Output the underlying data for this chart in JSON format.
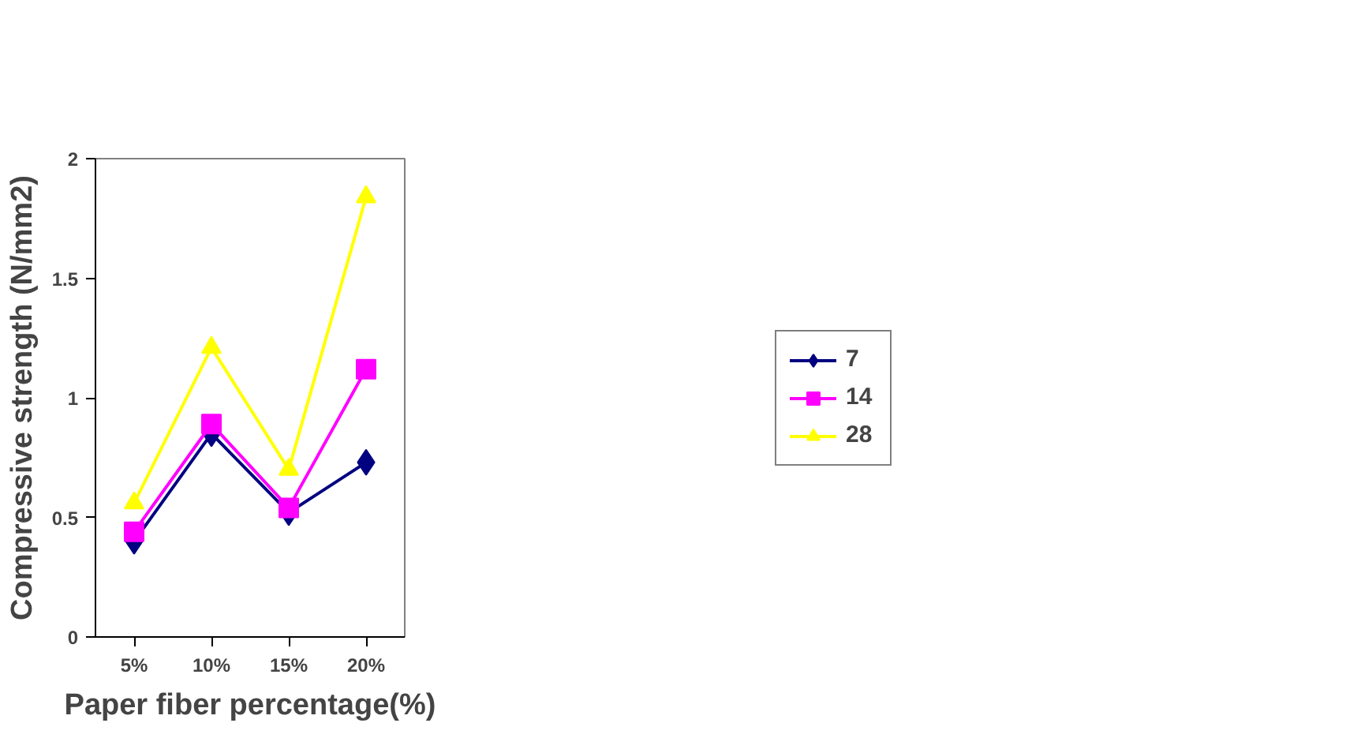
{
  "chart_data": {
    "type": "line",
    "xlabel": "Paper fiber percentage(%)",
    "ylabel": "Compressive strength (N/mm2)",
    "categories": [
      "5%",
      "10%",
      "15%",
      "20%"
    ],
    "series": [
      {
        "name": "7",
        "color": "#000080",
        "marker": "diamond",
        "values": [
          0.4,
          0.85,
          0.52,
          0.73
        ]
      },
      {
        "name": "14",
        "color": "#ff00ff",
        "marker": "square",
        "values": [
          0.44,
          0.89,
          0.54,
          1.12
        ]
      },
      {
        "name": "28",
        "color": "#ffff00",
        "marker": "triangle",
        "values": [
          0.56,
          1.21,
          0.7,
          1.84
        ]
      }
    ],
    "ylim": [
      0,
      2
    ],
    "yticks": [
      0,
      0.5,
      1,
      1.5,
      2
    ],
    "grid": false,
    "legend": "right",
    "line_style": "solid"
  }
}
